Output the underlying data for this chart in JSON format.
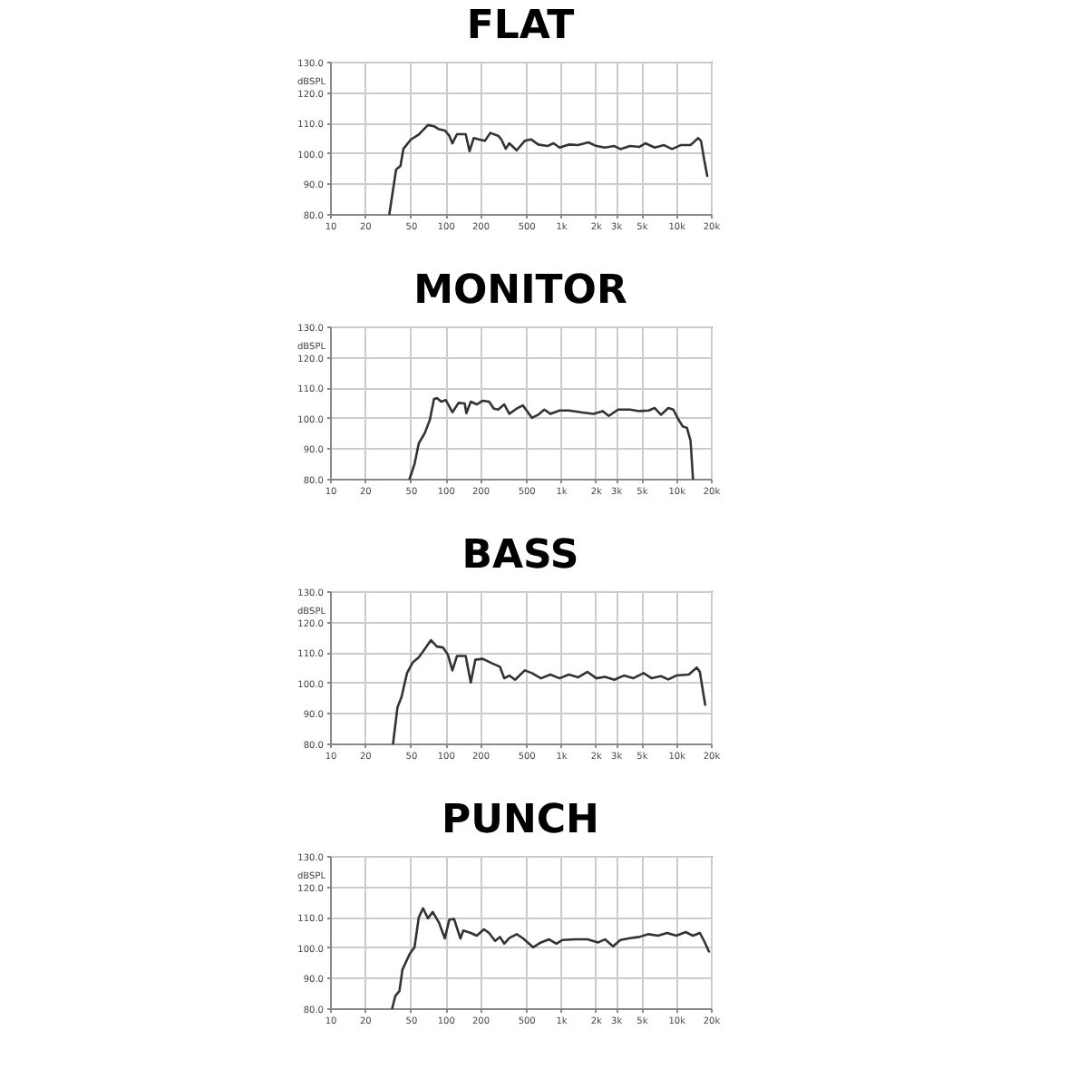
{
  "chart_data": [
    {
      "type": "line",
      "title": "FLAT",
      "ylabel": "dBSPL",
      "xlim": [
        10,
        20000
      ],
      "ylim": [
        80,
        130
      ],
      "log": "x",
      "grid": true,
      "legend": false,
      "marker": "none",
      "line_style": "solid",
      "xticks": [
        10,
        20,
        50,
        100,
        200,
        500,
        {
          "value": 1000,
          "label": "1k"
        },
        {
          "value": 2000,
          "label": "2k"
        },
        {
          "value": 3000,
          "label": "3k"
        },
        {
          "value": 5000,
          "label": "5k"
        },
        {
          "value": 10000,
          "label": "10k"
        },
        {
          "value": 20000,
          "label": "20k"
        }
      ],
      "yticks": [
        {
          "value": 80,
          "label": "80.0"
        },
        {
          "value": 90,
          "label": "90.0"
        },
        {
          "value": 100,
          "label": "100.0"
        },
        {
          "value": 110,
          "label": "110.0"
        },
        {
          "value": 120,
          "label": "120.0"
        },
        {
          "value": 130,
          "label": "130.0"
        }
      ],
      "series": [
        {
          "color": "#333333",
          "x": [
            32.7,
            37.4,
            40.8,
            43.3,
            50.1,
            58.8,
            70.6,
            79.6,
            88,
            98.9,
            108,
            115,
            126,
            150,
            162,
            176,
            199,
            220,
            245,
            287,
            306,
            334,
            358,
            415,
            488,
            552,
            638,
            767,
            866,
            977,
            1175,
            1411,
            1735,
            2037,
            2420,
            2914,
            3290,
            3985,
            4791,
            5420,
            6530,
            7860,
            9220,
            10950,
            13340,
            15480,
            16450,
            17480,
            18620
          ],
          "values": [
            80,
            94.6,
            95.8,
            101.4,
            104.4,
            106.1,
            109.2,
            108.8,
            107.8,
            107.4,
            105.7,
            103.2,
            106.2,
            106.2,
            100.6,
            104.9,
            104.4,
            104.0,
            106.6,
            105.7,
            104.4,
            101.4,
            103.2,
            100.9,
            104.0,
            104.5,
            102.8,
            102.3,
            103.2,
            101.8,
            102.8,
            102.6,
            103.5,
            102.3,
            101.8,
            102.3,
            101.3,
            102.3,
            102.0,
            103.2,
            101.8,
            102.6,
            101.3,
            102.6,
            102.6,
            104.9,
            104.0,
            98.0,
            92.5
          ]
        }
      ]
    },
    {
      "type": "line",
      "title": "MONITOR",
      "ylabel": "dBSPL",
      "xlim": [
        10,
        20000
      ],
      "ylim": [
        80,
        130
      ],
      "log": "x",
      "grid": true,
      "legend": false,
      "marker": "none",
      "line_style": "solid",
      "xticks": [
        10,
        20,
        50,
        100,
        200,
        500,
        {
          "value": 1000,
          "label": "1k"
        },
        {
          "value": 2000,
          "label": "2k"
        },
        {
          "value": 3000,
          "label": "3k"
        },
        {
          "value": 5000,
          "label": "5k"
        },
        {
          "value": 10000,
          "label": "10k"
        },
        {
          "value": 20000,
          "label": "20k"
        }
      ],
      "yticks": [
        {
          "value": 80,
          "label": "80.0"
        },
        {
          "value": 90,
          "label": "90.0"
        },
        {
          "value": 100,
          "label": "100.0"
        },
        {
          "value": 110,
          "label": "110.0"
        },
        {
          "value": 120,
          "label": "120.0"
        },
        {
          "value": 130,
          "label": "130.0"
        }
      ],
      "series": [
        {
          "color": "#333333",
          "x": [
            49,
            54,
            58.8,
            66.3,
            73.3,
            79.6,
            84.5,
            92,
            101,
            115,
            130,
            147,
            152,
            166,
            187,
            211,
            239,
            263,
            287,
            324,
            358,
            415,
            469,
            562,
            638,
            720,
            813,
            977,
            1175,
            1502,
            1920,
            2310,
            2610,
            3140,
            3985,
            4791,
            5770,
            6530,
            7390,
            8560,
            9450,
            10430,
            11380,
            12410,
            13340,
            14010
          ],
          "values": [
            80,
            84.8,
            91.6,
            95.0,
            99.3,
            106.1,
            106.5,
            105.3,
            105.8,
            101.8,
            104.9,
            104.7,
            101.5,
            105.3,
            104.4,
            105.6,
            105.3,
            103.0,
            102.7,
            104.4,
            101.3,
            103.0,
            104.1,
            100.0,
            101.0,
            102.7,
            101.3,
            102.4,
            102.4,
            101.8,
            101.3,
            102.2,
            100.6,
            102.7,
            102.7,
            102.2,
            102.4,
            103.2,
            101.0,
            103.2,
            102.7,
            99.6,
            97.2,
            96.7,
            92.5,
            80
          ]
        }
      ]
    },
    {
      "type": "line",
      "title": "BASS",
      "ylabel": "dBSPL",
      "xlim": [
        10,
        20000
      ],
      "ylim": [
        80,
        130
      ],
      "log": "x",
      "grid": true,
      "legend": false,
      "marker": "none",
      "line_style": "solid",
      "xticks": [
        10,
        20,
        50,
        100,
        200,
        500,
        {
          "value": 1000,
          "label": "1k"
        },
        {
          "value": 2000,
          "label": "2k"
        },
        {
          "value": 3000,
          "label": "3k"
        },
        {
          "value": 5000,
          "label": "5k"
        },
        {
          "value": 10000,
          "label": "10k"
        },
        {
          "value": 20000,
          "label": "20k"
        }
      ],
      "yticks": [
        {
          "value": 80,
          "label": "80.0"
        },
        {
          "value": 90,
          "label": "90.0"
        },
        {
          "value": 100,
          "label": "100.0"
        },
        {
          "value": 110,
          "label": "110.0"
        },
        {
          "value": 120,
          "label": "120.0"
        },
        {
          "value": 130,
          "label": "130.0"
        }
      ],
      "series": [
        {
          "color": "#333333",
          "x": [
            35.2,
            38.4,
            41.7,
            46.5,
            52.1,
            58.8,
            66.3,
            75,
            84.5,
            95.4,
            105,
            115,
            126,
            150,
            166,
            182,
            211,
            254,
            297,
            324,
            358,
            402,
            488,
            562,
            674,
            813,
            977,
            1175,
            1411,
            1700,
            2037,
            2420,
            2914,
            3530,
            4240,
            5230,
            6150,
            7390,
            8560,
            10050,
            12870,
            15120,
            16060,
            17860
          ],
          "values": [
            80,
            91.8,
            95.3,
            103.1,
            106.6,
            108.3,
            111.0,
            113.9,
            111.8,
            111.5,
            109.2,
            104.0,
            108.7,
            108.7,
            100.0,
            107.5,
            107.8,
            106.3,
            105.2,
            101.4,
            102.3,
            100.9,
            104.0,
            103.1,
            101.4,
            102.6,
            101.4,
            102.6,
            101.7,
            103.5,
            101.4,
            101.9,
            100.9,
            102.3,
            101.4,
            103.1,
            101.4,
            102.1,
            101.0,
            102.3,
            102.6,
            104.9,
            103.5,
            92.7
          ]
        }
      ]
    },
    {
      "type": "line",
      "title": "PUNCH",
      "ylabel": "dBSPL",
      "xlim": [
        10,
        20000
      ],
      "ylim": [
        80,
        130
      ],
      "log": "x",
      "grid": true,
      "legend": false,
      "marker": "none",
      "line_style": "solid",
      "xticks": [
        10,
        20,
        50,
        100,
        200,
        500,
        {
          "value": 1000,
          "label": "1k"
        },
        {
          "value": 2000,
          "label": "2k"
        },
        {
          "value": 3000,
          "label": "3k"
        },
        {
          "value": 5000,
          "label": "5k"
        },
        {
          "value": 10000,
          "label": "10k"
        },
        {
          "value": 20000,
          "label": "20k"
        }
      ],
      "yticks": [
        {
          "value": 80,
          "label": "80.0"
        },
        {
          "value": 90,
          "label": "90.0"
        },
        {
          "value": 100,
          "label": "100.0"
        },
        {
          "value": 110,
          "label": "110.0"
        },
        {
          "value": 120,
          "label": "120.0"
        },
        {
          "value": 130,
          "label": "130.0"
        }
      ],
      "series": [
        {
          "color": "#333333",
          "x": [
            34.6,
            36.8,
            40.0,
            42.4,
            49.0,
            54.0,
            58.8,
            64,
            70.6,
            77.7,
            88,
            98.9,
            108,
            119,
            135,
            143,
            166,
            187,
            216,
            239,
            270,
            297,
            324,
            358,
            415,
            469,
            576,
            674,
            793,
            918,
            1037,
            1330,
            1700,
            2110,
            2420,
            2840,
            3290,
            3985,
            4791,
            5770,
            6960,
            8350,
            10050,
            12110,
            14010,
            16060,
            17480,
            19270
          ],
          "values": [
            80,
            84.0,
            85.7,
            92.6,
            97.8,
            100,
            109.8,
            112.8,
            109.5,
            111.6,
            108.1,
            102.9,
            109.0,
            109.3,
            102.9,
            105.5,
            104.7,
            103.8,
            105.9,
            104.7,
            102.1,
            103.4,
            101.2,
            103.0,
            104.3,
            103.0,
            100,
            101.6,
            102.6,
            101.2,
            102.4,
            102.6,
            102.6,
            101.6,
            102.6,
            100.3,
            102.4,
            103.0,
            103.4,
            104.3,
            103.8,
            104.7,
            103.8,
            105.0,
            103.8,
            104.7,
            102.1,
            98.6
          ]
        }
      ]
    }
  ]
}
